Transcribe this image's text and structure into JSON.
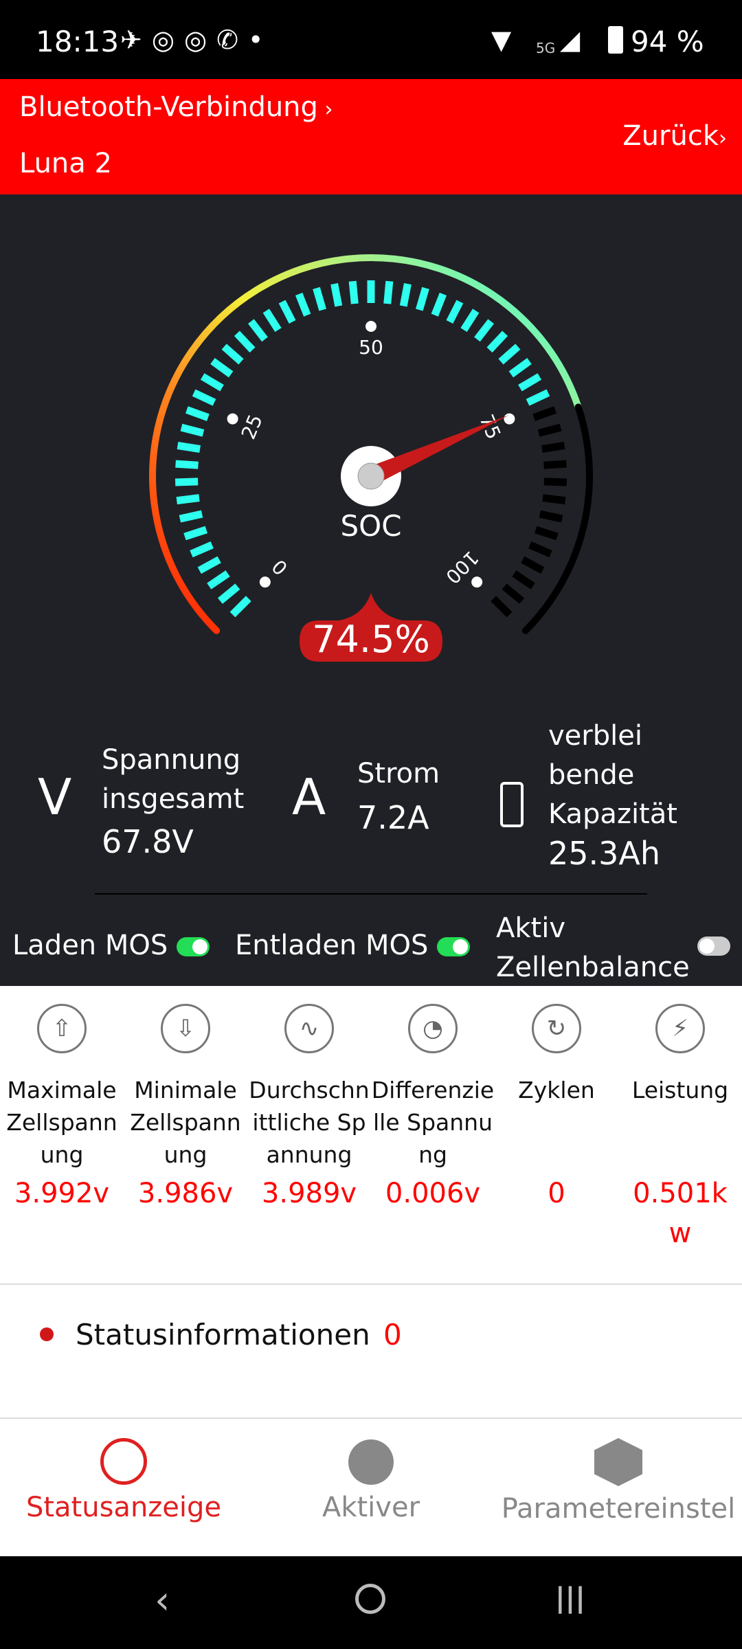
{
  "statusbar": {
    "time": "18:13",
    "network": "5G",
    "battery": "94 %",
    "icons": [
      "telegram-icon",
      "instagram-icon",
      "instagram-icon",
      "whatsapp-icon",
      "dot-icon"
    ]
  },
  "header": {
    "connection_label": "Bluetooth-Verbindung",
    "device_name": "Luna 2",
    "back_label": "Zurück"
  },
  "gauge": {
    "label": "SOC",
    "value": 74.5,
    "value_text": "74.5%",
    "ticks": [
      "0",
      "25",
      "50",
      "75",
      "100"
    ],
    "min": 0,
    "max": 100,
    "active_color": "#2effee",
    "needle_color": "#c81a1a"
  },
  "info": [
    {
      "icon": "voltage-icon",
      "label": "Spannung insgesamt",
      "value": "67.8V"
    },
    {
      "icon": "current-icon",
      "label": "Strom",
      "value": "7.2A"
    },
    {
      "icon": "battery-icon",
      "label": "verblei bende Kapazität",
      "value": "25.3Ah"
    }
  ],
  "switches": [
    {
      "label": "Laden MOS",
      "on": true
    },
    {
      "label": "Entladen MOS",
      "on": true
    },
    {
      "label": "Aktiv Zellenbalance",
      "on": false
    }
  ],
  "stats": [
    {
      "icon": "max-cell-voltage-icon",
      "label": "Maximale Zellspannung",
      "value": "3.992v"
    },
    {
      "icon": "min-cell-voltage-icon",
      "label": "Minimale Zellspannung",
      "value": "3.986v"
    },
    {
      "icon": "average-voltage-icon",
      "label": "Durchschnittliche Spannung",
      "value": "3.989v"
    },
    {
      "icon": "differential-voltage-icon",
      "label": "Differenzielle Spannung",
      "value": "0.006v"
    },
    {
      "icon": "cycles-icon",
      "label": "Zyklen",
      "value": "0"
    },
    {
      "icon": "power-icon",
      "label": "Leistung",
      "value": "0.501kw"
    }
  ],
  "status_info": {
    "label": "Statusinformationen",
    "count": "0"
  },
  "bottom_nav": [
    {
      "icon": "status-icon",
      "label": "Statusanzeige",
      "active": true
    },
    {
      "icon": "balancer-icon",
      "label": "Aktiver",
      "active": false
    },
    {
      "icon": "settings-icon",
      "label": "Parametereinstel",
      "active": false
    }
  ],
  "colors": {
    "brand": "#ff0000",
    "accent_on": "#22dd55"
  }
}
